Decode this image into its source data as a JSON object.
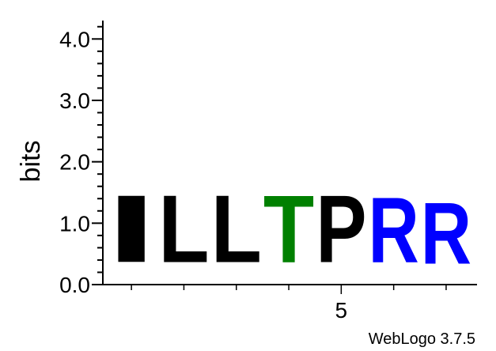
{
  "chart_data": {
    "type": "sequence-logo",
    "ylabel": "bits",
    "ylim": [
      0,
      4.3
    ],
    "yticks": [
      {
        "value": 0.0,
        "label": "0.0"
      },
      {
        "value": 1.0,
        "label": "1.0"
      },
      {
        "value": 2.0,
        "label": "2.0"
      },
      {
        "value": 3.0,
        "label": "3.0"
      },
      {
        "value": 4.0,
        "label": "4.0"
      }
    ],
    "yminor_step": 0.2,
    "positions": [
      1,
      2,
      3,
      4,
      5,
      6,
      7
    ],
    "xtick_labels": [
      {
        "position": 5,
        "label": "5"
      }
    ],
    "columns": [
      {
        "position": 1,
        "letter": "I",
        "bits": 1.75,
        "color": "#000000"
      },
      {
        "position": 2,
        "letter": "L",
        "bits": 1.75,
        "color": "#000000"
      },
      {
        "position": 3,
        "letter": "L",
        "bits": 1.75,
        "color": "#000000"
      },
      {
        "position": 4,
        "letter": "T",
        "bits": 1.75,
        "color": "#008000"
      },
      {
        "position": 5,
        "letter": "P",
        "bits": 1.75,
        "color": "#000000"
      },
      {
        "position": 6,
        "letter": "R",
        "bits": 1.7,
        "color": "#0000ff"
      },
      {
        "position": 7,
        "letter": "R",
        "bits": 1.6,
        "color": "#0000ff"
      }
    ],
    "grid": false
  },
  "credit": "WebLogo 3.7.5"
}
